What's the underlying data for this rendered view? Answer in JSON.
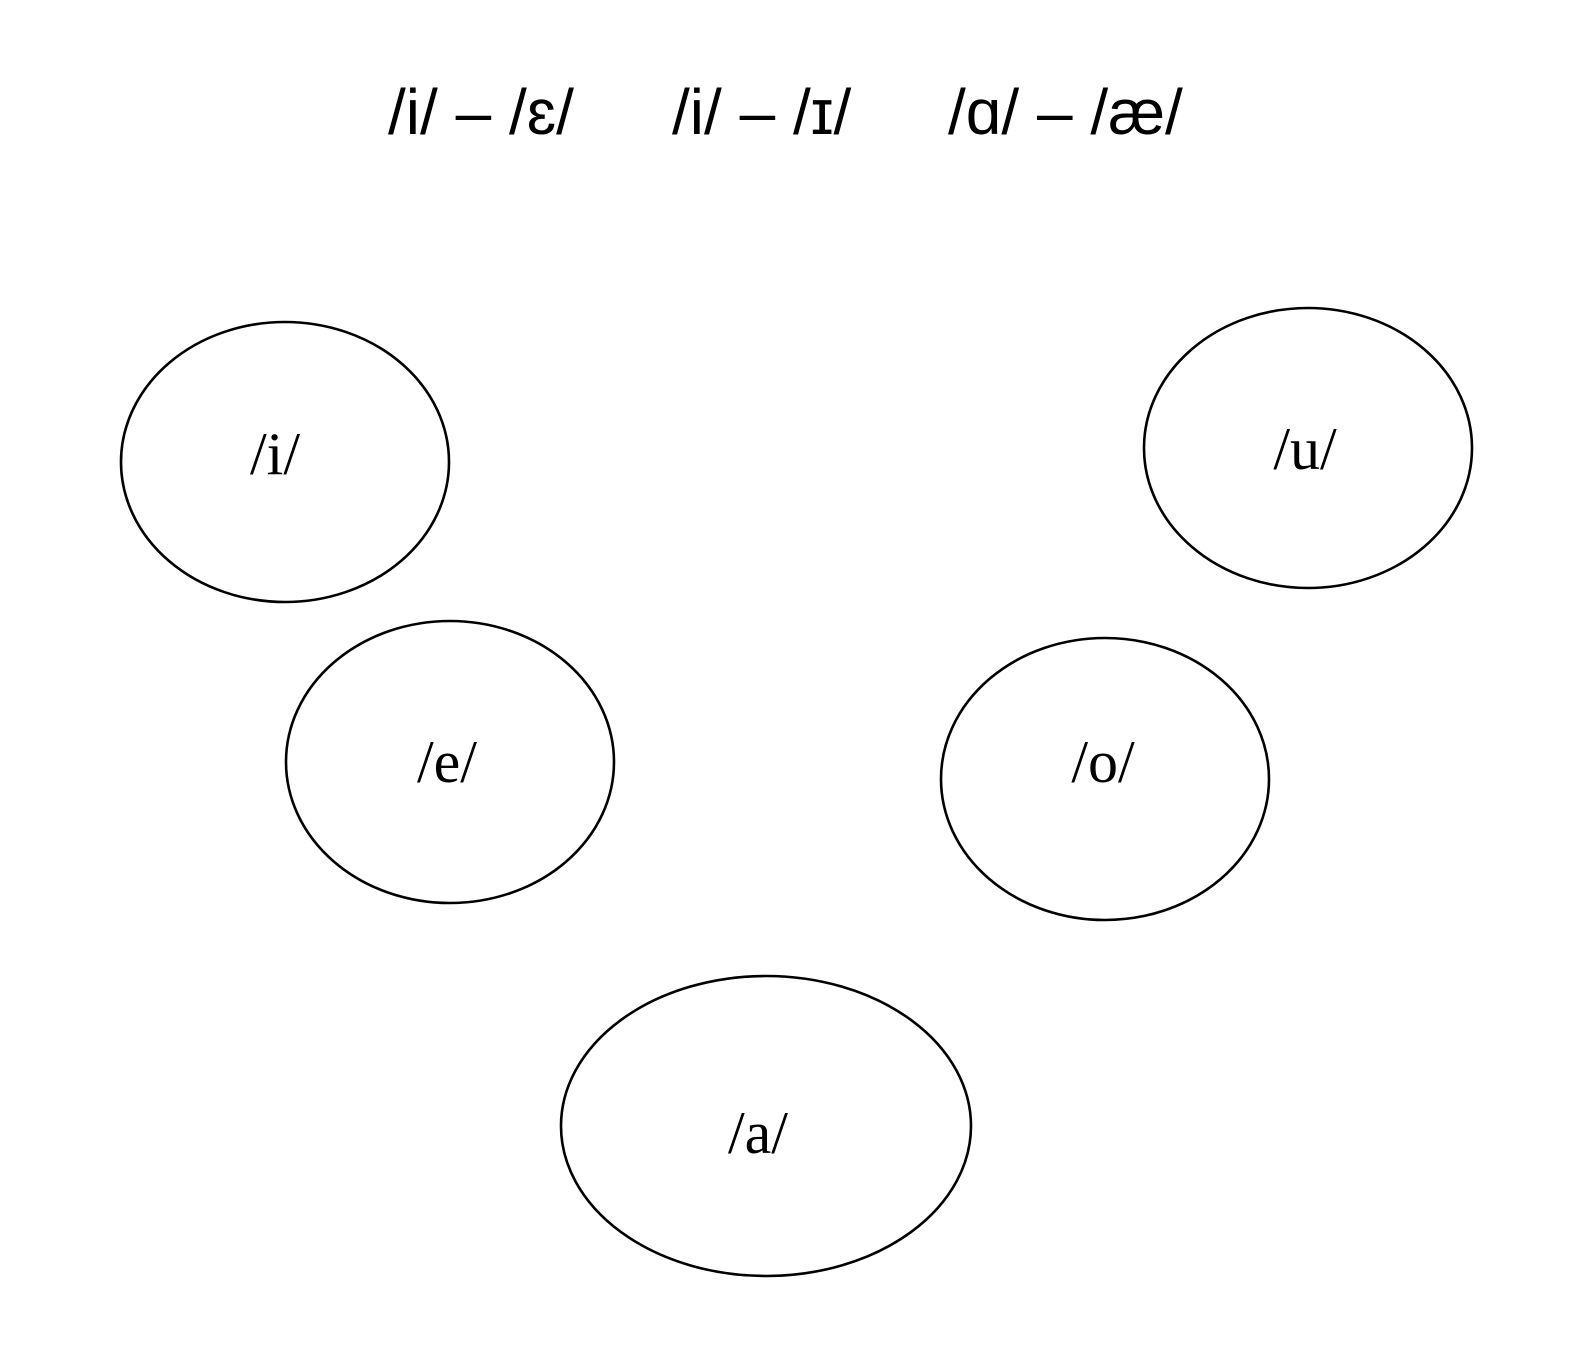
{
  "title": {
    "pairs": [
      "/i/ – /ɛ/",
      "/i/ – /ɪ/",
      "/ɑ/ – /æ/"
    ]
  },
  "vowels": [
    {
      "name": "i",
      "label": "/i/"
    },
    {
      "name": "u",
      "label": "/u/"
    },
    {
      "name": "e",
      "label": "/e/"
    },
    {
      "name": "o",
      "label": "/o/"
    },
    {
      "name": "a",
      "label": "/a/"
    }
  ],
  "colors": {
    "stroke": "#000000",
    "text": "#000000",
    "background": "#ffffff"
  }
}
